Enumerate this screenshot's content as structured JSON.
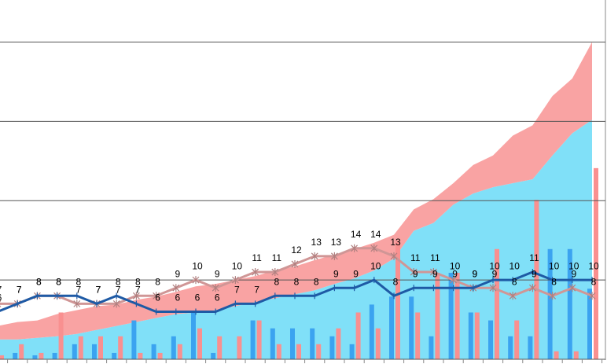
{
  "chart_data": {
    "type": "combo",
    "categories": [
      null,
      null,
      null,
      null,
      null,
      null,
      null,
      null,
      null,
      null,
      null,
      null,
      null,
      null,
      null,
      null,
      null,
      null,
      null,
      null,
      null,
      null,
      null,
      null,
      null,
      null,
      null,
      null,
      null,
      null,
      null
    ],
    "ylim": [
      0,
      45.3
    ],
    "yticks": [
      0,
      10,
      20,
      30,
      40
    ],
    "grid": true,
    "series": [
      {
        "type": "area",
        "color": "#80e0f8",
        "values": [
          2.5,
          2.5,
          2.7,
          2.9,
          3.2,
          3.7,
          4.2,
          4.7,
          5.2,
          5.7,
          5.9,
          6.2,
          6.7,
          7.2,
          7.7,
          8.2,
          8.7,
          9.5,
          10.2,
          11.2,
          12.7,
          16.2,
          17.2,
          19.5,
          20.9,
          21.7,
          22.2,
          22.7,
          25.7,
          28.5,
          30.2
        ]
      },
      {
        "type": "area",
        "color": "#f9a3a3",
        "values": [
          1.7,
          2.2,
          2.2,
          2.8,
          3.0,
          3.0,
          2.7,
          2.8,
          2.7,
          2.8,
          3.3,
          3.3,
          3.3,
          3.3,
          3.5,
          3.5,
          3.8,
          3.7,
          3.7,
          3.5,
          3.0,
          2.7,
          3.0,
          2.7,
          3.6,
          4.0,
          6.0,
          6.8,
          7.5,
          6.9,
          9.8
        ]
      },
      {
        "type": "bar",
        "color": "#3ba3f0",
        "values": [
          0.8,
          0.8,
          0.5,
          0.8,
          1.9,
          1.9,
          0.8,
          4.9,
          1.9,
          2.9,
          5.9,
          0.8,
          0,
          4.9,
          3.9,
          3.9,
          3.9,
          2.9,
          1.9,
          6.9,
          7.9,
          7.9,
          2.9,
          10.9,
          5.9,
          4.9,
          2.9,
          2.9,
          13.9,
          13.9,
          8.9
        ]
      },
      {
        "type": "bar",
        "color": "#f99090",
        "values": [
          0.5,
          1.9,
          0.8,
          5.9,
          2.9,
          2.9,
          2.9,
          0.8,
          0.8,
          1.9,
          3.9,
          2.9,
          2.9,
          4.9,
          1.9,
          1.9,
          1.9,
          3.9,
          5.9,
          3.9,
          14.9,
          5.9,
          10.9,
          10.9,
          5.9,
          13.9,
          4.9,
          20.1,
          1,
          1,
          24.1
        ]
      },
      {
        "type": "line",
        "color": "#d09696",
        "marker": "star",
        "values": [
          7,
          7,
          8,
          8,
          7,
          7,
          7,
          8,
          8,
          9,
          10,
          9,
          10,
          11,
          11,
          12,
          13,
          13,
          14,
          14,
          13,
          11,
          11,
          10,
          9,
          9,
          8,
          9,
          8,
          9,
          8
        ]
      },
      {
        "type": "line",
        "color": "#1e5aa5",
        "marker": "plus",
        "values": [
          6,
          7,
          8,
          8,
          8,
          7,
          8,
          7,
          6,
          6,
          6,
          6,
          7,
          7,
          8,
          8,
          8,
          9,
          9,
          10,
          8,
          9,
          9,
          9,
          9,
          10,
          10,
          11,
          10,
          10,
          10
        ]
      }
    ]
  }
}
